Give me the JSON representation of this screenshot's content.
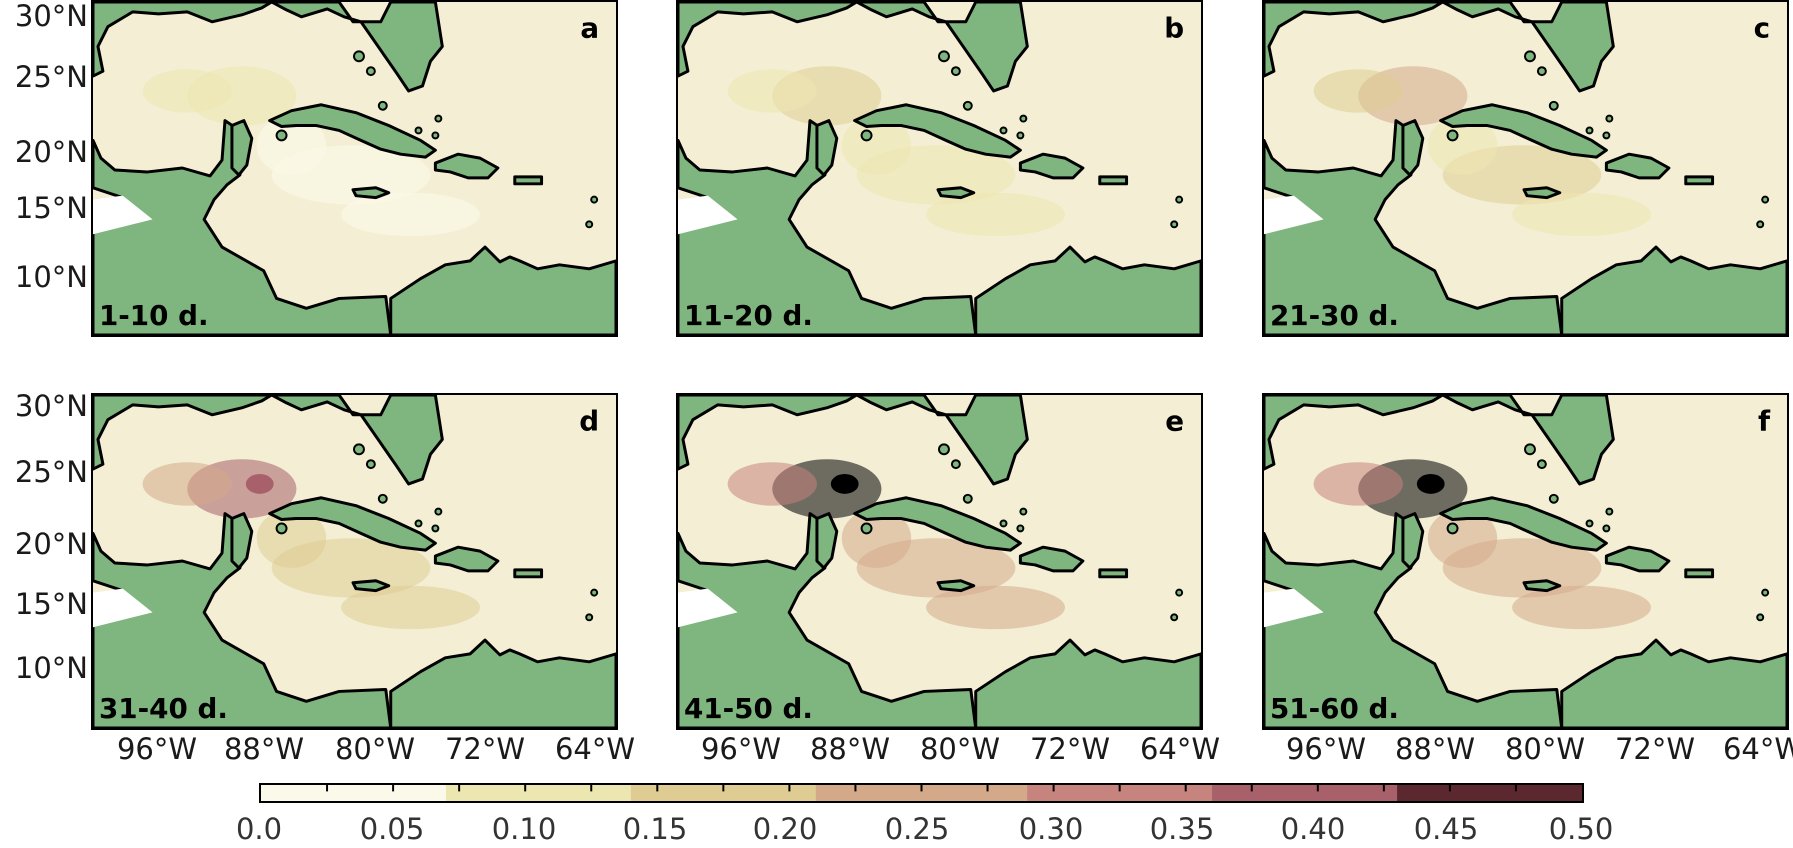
{
  "panels": [
    {
      "letter": "a",
      "period": "1-10 d.",
      "intensity": 0.12
    },
    {
      "letter": "b",
      "period": "11-20 d.",
      "intensity": 0.2
    },
    {
      "letter": "c",
      "period": "21-30 d.",
      "intensity": 0.27
    },
    {
      "letter": "d",
      "period": "31-40 d.",
      "intensity": 0.36
    },
    {
      "letter": "e",
      "period": "41-50 d.",
      "intensity": 0.5
    },
    {
      "letter": "f",
      "period": "51-60 d.",
      "intensity": 0.5
    }
  ],
  "axes": {
    "lat_ticks": [
      "30°N",
      "25°N",
      "20°N",
      "15°N",
      "10°N"
    ],
    "lon_ticks": [
      "96°W",
      "88°W",
      "80°W",
      "72°W",
      "64°W"
    ]
  },
  "colorbar": {
    "ticks": [
      "0.0",
      "0.05",
      "0.10",
      "0.15",
      "0.20",
      "0.25",
      "0.30",
      "0.35",
      "0.40",
      "0.45",
      "0.50"
    ],
    "range": [
      0.0,
      0.5
    ],
    "colors": [
      "#fbf9ea",
      "#ece6b0",
      "#dfcc93",
      "#d4a98a",
      "#c7837e",
      "#a8606a",
      "#5c2830",
      "#000000"
    ]
  },
  "land_color": "#7fb57f"
}
